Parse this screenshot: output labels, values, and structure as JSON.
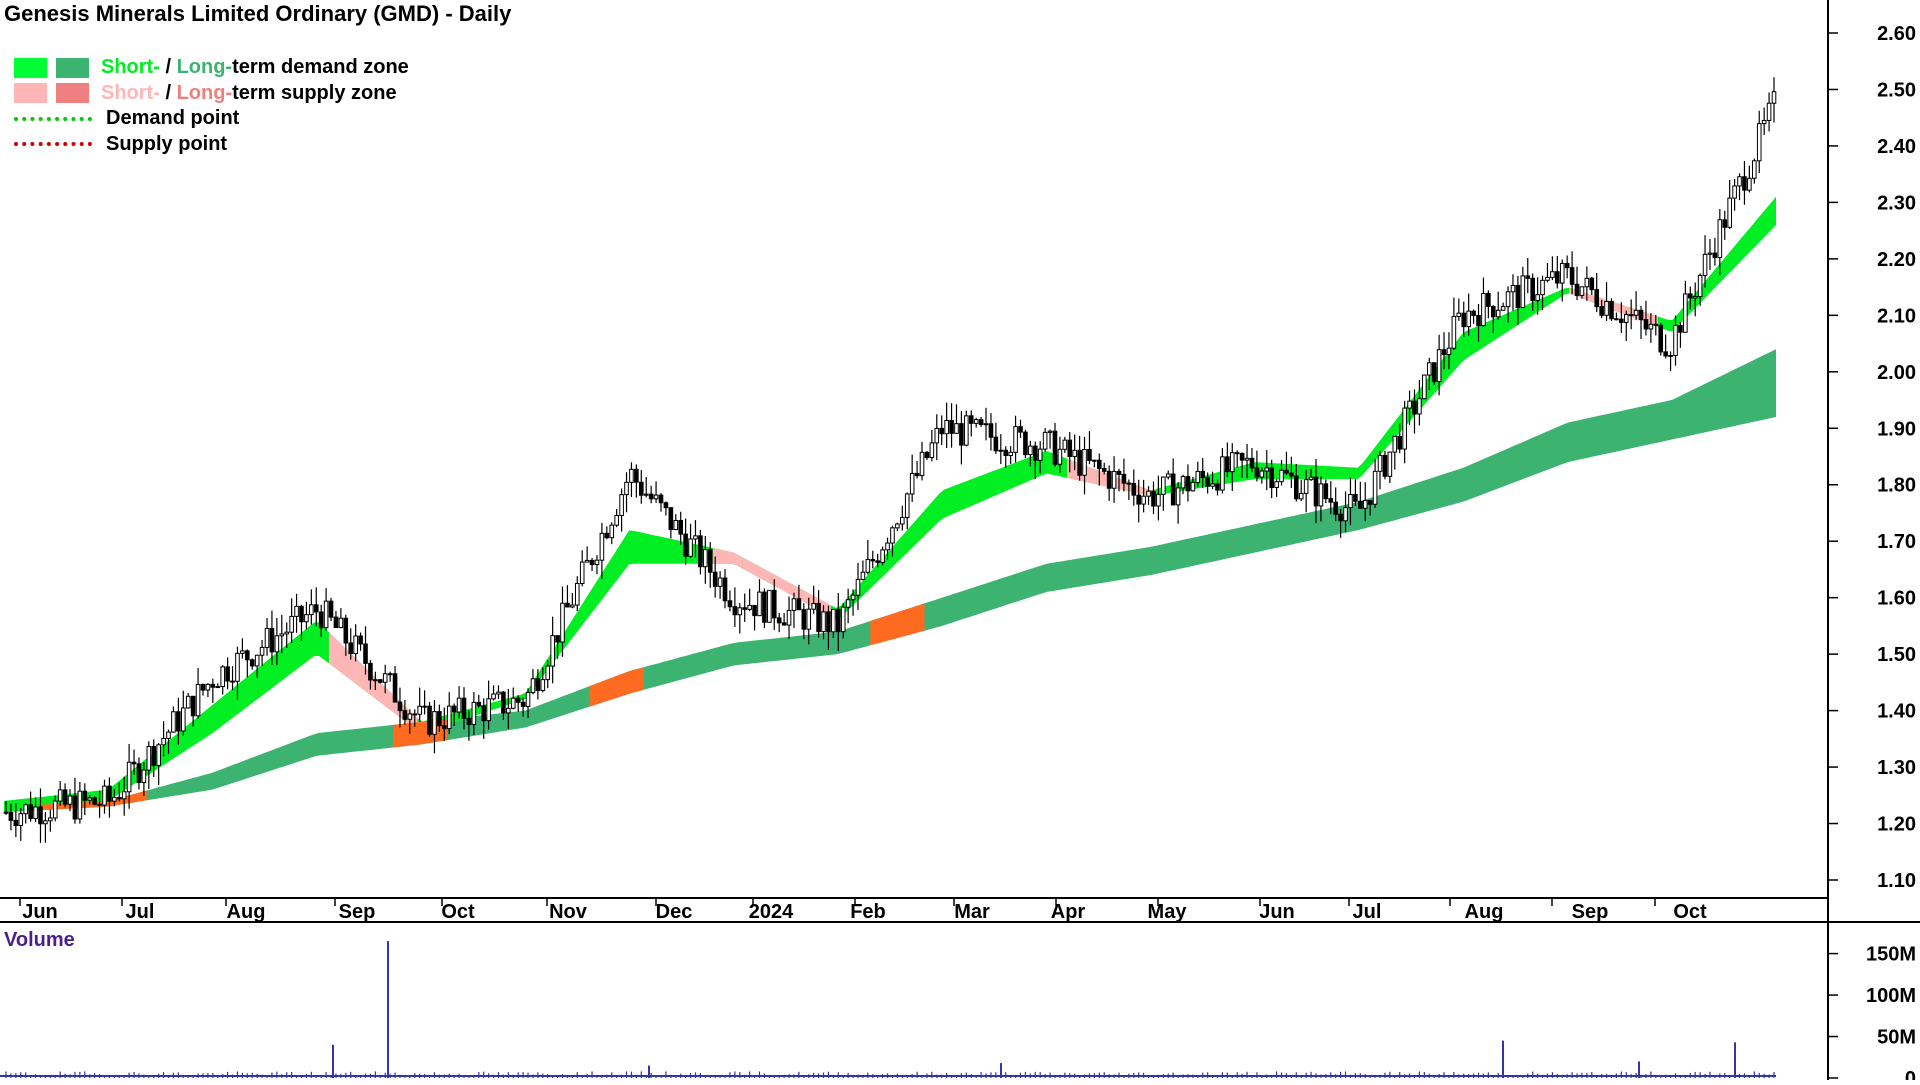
{
  "title": "Genesis Minerals Limited Ordinary (GMD) - Daily",
  "legend": {
    "demand_zone": {
      "short": "Short-",
      "sep": " / ",
      "long": "Long-",
      "rest": "term demand zone",
      "short_color": "#00ff33",
      "long_color": "#3cb371"
    },
    "supply_zone": {
      "short": "Short-",
      "sep": " / ",
      "long": "Long-",
      "rest": "term supply zone",
      "short_color": "#ffb6b6",
      "long_color": "#f08080"
    },
    "demand_point": {
      "label": "Demand point",
      "color": "#00cc00"
    },
    "supply_point": {
      "label": "Supply point",
      "color": "#cc0000"
    }
  },
  "volume_label": "Volume",
  "colors": {
    "short_demand": "#00ee22",
    "long_demand": "#3cb371",
    "short_supply": "#ffb6b6",
    "long_supply": "#ff6a21",
    "candle": "#000000",
    "volume": "#3333aa",
    "volume_label": "#4b1e8c"
  },
  "chart_data": {
    "type": "candlestick",
    "title": "Genesis Minerals Limited Ordinary (GMD) - Daily",
    "x_ticks": [
      "Jun",
      "Jul",
      "Aug",
      "Sep",
      "Oct",
      "Nov",
      "Dec",
      "2024",
      "Feb",
      "Mar",
      "Apr",
      "May",
      "Jun",
      "Jul",
      "Aug",
      "Sep",
      "Oct"
    ],
    "y_ticks": [
      "1.10",
      "1.20",
      "1.30",
      "1.40",
      "1.50",
      "1.60",
      "1.70",
      "1.80",
      "1.90",
      "2.00",
      "2.10",
      "2.20",
      "2.30",
      "2.40",
      "2.50",
      "2.60"
    ],
    "ylim": [
      1.07,
      2.63
    ],
    "price_monthly_approx": [
      1.22,
      1.24,
      1.46,
      1.58,
      1.38,
      1.42,
      1.82,
      1.6,
      1.55,
      1.9,
      1.87,
      1.78,
      1.84,
      1.75,
      2.1,
      2.17,
      2.05,
      2.47
    ],
    "short_band_monthly": [
      [
        1.22,
        1.24
      ],
      [
        1.24,
        1.26
      ],
      [
        1.36,
        1.41
      ],
      [
        1.5,
        1.56
      ],
      [
        1.36,
        1.38
      ],
      [
        1.42,
        1.43
      ],
      [
        1.66,
        1.72
      ],
      [
        1.66,
        1.68
      ],
      [
        1.56,
        1.58
      ],
      [
        1.74,
        1.79
      ],
      [
        1.82,
        1.86
      ],
      [
        1.78,
        1.79
      ],
      [
        1.81,
        1.84
      ],
      [
        1.81,
        1.83
      ],
      [
        2.02,
        2.07
      ],
      [
        2.14,
        2.15
      ],
      [
        2.07,
        2.09
      ],
      [
        2.26,
        2.31
      ]
    ],
    "long_band_monthly": [
      [
        1.22,
        1.23
      ],
      [
        1.23,
        1.24
      ],
      [
        1.26,
        1.29
      ],
      [
        1.32,
        1.36
      ],
      [
        1.34,
        1.38
      ],
      [
        1.37,
        1.4
      ],
      [
        1.43,
        1.47
      ],
      [
        1.48,
        1.52
      ],
      [
        1.5,
        1.54
      ],
      [
        1.55,
        1.6
      ],
      [
        1.61,
        1.66
      ],
      [
        1.64,
        1.69
      ],
      [
        1.68,
        1.73
      ],
      [
        1.72,
        1.77
      ],
      [
        1.77,
        1.83
      ],
      [
        1.84,
        1.91
      ],
      [
        1.88,
        1.95
      ],
      [
        1.92,
        2.04
      ]
    ],
    "volume_ticks": [
      "0",
      "50M",
      "100M",
      "150M"
    ],
    "volume_ylim": [
      0,
      170
    ],
    "volume_spikes_M": [
      {
        "month": "Sep",
        "value": 40
      },
      {
        "month": "Sep",
        "value": 165
      },
      {
        "month": "Dec",
        "value": 15
      },
      {
        "month": "Mar",
        "value": 18
      },
      {
        "month": "Aug",
        "value": 45
      },
      {
        "month": "Sep",
        "value": 20
      },
      {
        "month": "Oct",
        "value": 43
      }
    ],
    "grid": false,
    "legend_position": "top-left"
  }
}
